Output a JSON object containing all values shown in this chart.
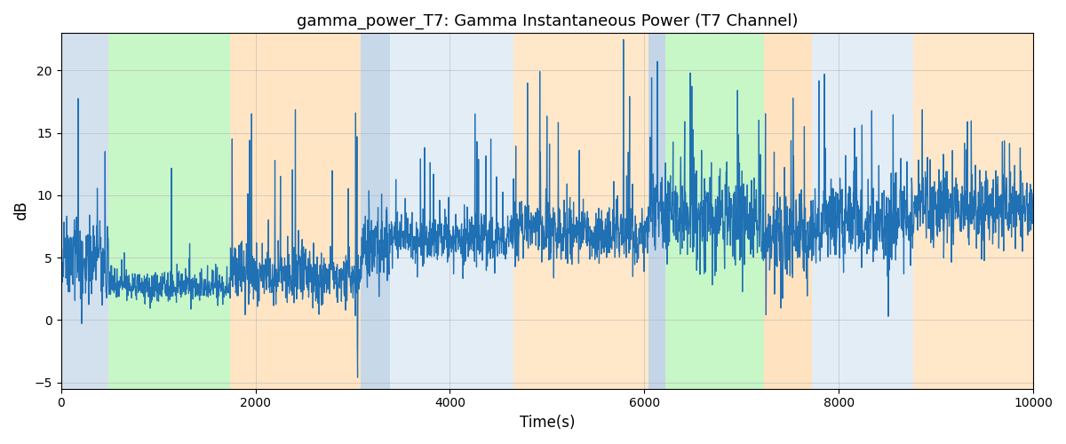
{
  "title": "gamma_power_T7: Gamma Instantaneous Power (T7 Channel)",
  "xlabel": "Time(s)",
  "ylabel": "dB",
  "xlim": [
    0,
    10000
  ],
  "ylim": [
    -5.5,
    23
  ],
  "yticks": [
    -5,
    0,
    5,
    10,
    15,
    20
  ],
  "xticks": [
    0,
    2000,
    4000,
    6000,
    8000,
    10000
  ],
  "line_color": "#2070b4",
  "line_width": 0.9,
  "background_color": "#ffffff",
  "grid_color": "#b0b0b0",
  "regions": [
    {
      "xmin": 0,
      "xmax": 490,
      "color": "#b0c8e0",
      "alpha": 0.55
    },
    {
      "xmin": 490,
      "xmax": 1740,
      "color": "#90ee90",
      "alpha": 0.5
    },
    {
      "xmin": 1740,
      "xmax": 3080,
      "color": "#ffd59e",
      "alpha": 0.6
    },
    {
      "xmin": 3080,
      "xmax": 3380,
      "color": "#b0c8e0",
      "alpha": 0.7
    },
    {
      "xmin": 3380,
      "xmax": 4650,
      "color": "#c8dced",
      "alpha": 0.5
    },
    {
      "xmin": 4650,
      "xmax": 6040,
      "color": "#ffd59e",
      "alpha": 0.55
    },
    {
      "xmin": 6040,
      "xmax": 6220,
      "color": "#b0c8e0",
      "alpha": 0.75
    },
    {
      "xmin": 6220,
      "xmax": 7230,
      "color": "#90ee90",
      "alpha": 0.5
    },
    {
      "xmin": 7230,
      "xmax": 7720,
      "color": "#ffd59e",
      "alpha": 0.65
    },
    {
      "xmin": 7720,
      "xmax": 8770,
      "color": "#c8dced",
      "alpha": 0.5
    },
    {
      "xmin": 8770,
      "xmax": 10000,
      "color": "#ffd59e",
      "alpha": 0.55
    }
  ]
}
